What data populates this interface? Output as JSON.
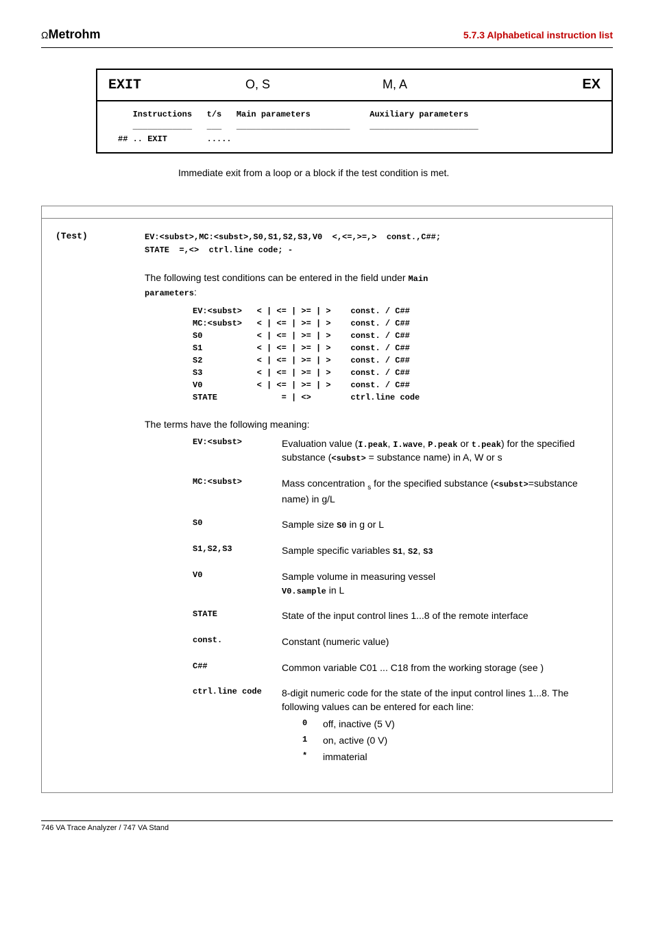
{
  "header": {
    "brand_prefix": "Ω",
    "brand": "Metrohm",
    "section": "5.7.3  Alphabetical instruction list"
  },
  "instruction_box": {
    "name": "EXIT",
    "os": "O, S",
    "ma": "M, A",
    "code": "EX",
    "params_header": "   Instructions   t/s   Main parameters            Auxiliary parameters",
    "params_divider": "   ____________   ___   _______________________    ______________________",
    "params_line": "## .. EXIT        ....."
  },
  "description": "Immediate exit from a loop or a block if the test condition is met.",
  "test": {
    "label": "(Test)",
    "syntax_line1": "EV:<subst>,MC:<subst>,S0,S1,S2,S3,V0  <,<=,>=,>  const.,C##;",
    "syntax_line2": "STATE  =,<>  ctrl.line code; -",
    "intro_1": "The following test conditions can be entered in the field under ",
    "intro_main": "Main",
    "intro_params": "parameters",
    "intro_colon": ":",
    "conditions": "EV:<subst>   < | <= | >= | >    const. / C##\nMC:<subst>   < | <= | >= | >    const. / C##\nS0           < | <= | >= | >    const. / C##\nS1           < | <= | >= | >    const. / C##\nS2           < | <= | >= | >    const. / C##\nS3           < | <= | >= | >    const. / C##\nV0           < | <= | >= | >    const. / C##\nSTATE             = | <>        ctrl.line code",
    "terms_intro": "The terms have the following meaning:",
    "terms": [
      {
        "name": "EV:<subst>",
        "desc_1": "Evaluation value (",
        "desc_mono1": "I.peak",
        "desc_c1": ", ",
        "desc_mono2": "I.wave",
        "desc_c2": ", ",
        "desc_mono3": "P.peak",
        "desc_c3": " or ",
        "desc_mono4": "t.peak",
        "desc_2": ") for the specified substance (",
        "desc_mono5": "<subst>",
        "desc_3": " = substance name) in A, W or s"
      },
      {
        "name": "MC:<subst>",
        "desc_1": "Mass concentration ",
        "desc_sub": "s",
        "desc_2": " for the specified substance (",
        "desc_mono": "<subst>",
        "desc_3": "=substance name) in g/L"
      },
      {
        "name": "S0",
        "desc_1": "Sample size ",
        "desc_mono": "S0",
        "desc_2": " in g or L"
      },
      {
        "name": "S1,S2,S3",
        "desc_1": "Sample specific variables ",
        "desc_mono1": "S1",
        "desc_c1": ", ",
        "desc_mono2": "S2",
        "desc_c2": ", ",
        "desc_mono3": "S3"
      },
      {
        "name": "V0",
        "desc_1": "Sample volume in measuring vessel ",
        "desc_mono": "V0.sample",
        "desc_2": " in L"
      },
      {
        "name": "STATE",
        "desc": "State of the input control lines 1...8 of the remote interface"
      },
      {
        "name": "const.",
        "desc": "Constant (numeric value)"
      },
      {
        "name": "C##",
        "desc": "Common variable C01 ... C18 from the working storage (see                        )"
      },
      {
        "name": "ctrl.line code",
        "desc": "8-digit numeric code for the state of the input control lines 1...8. The following values can be entered for each line:",
        "sub": [
          {
            "k": "0",
            "v": "off, inactive (5 V)"
          },
          {
            "k": "1",
            "v": "on, active (0 V)"
          },
          {
            "k": "*",
            "v": "immaterial"
          }
        ]
      }
    ]
  },
  "footer": {
    "text": "746 VA Trace Analyzer / 747 VA Stand"
  }
}
